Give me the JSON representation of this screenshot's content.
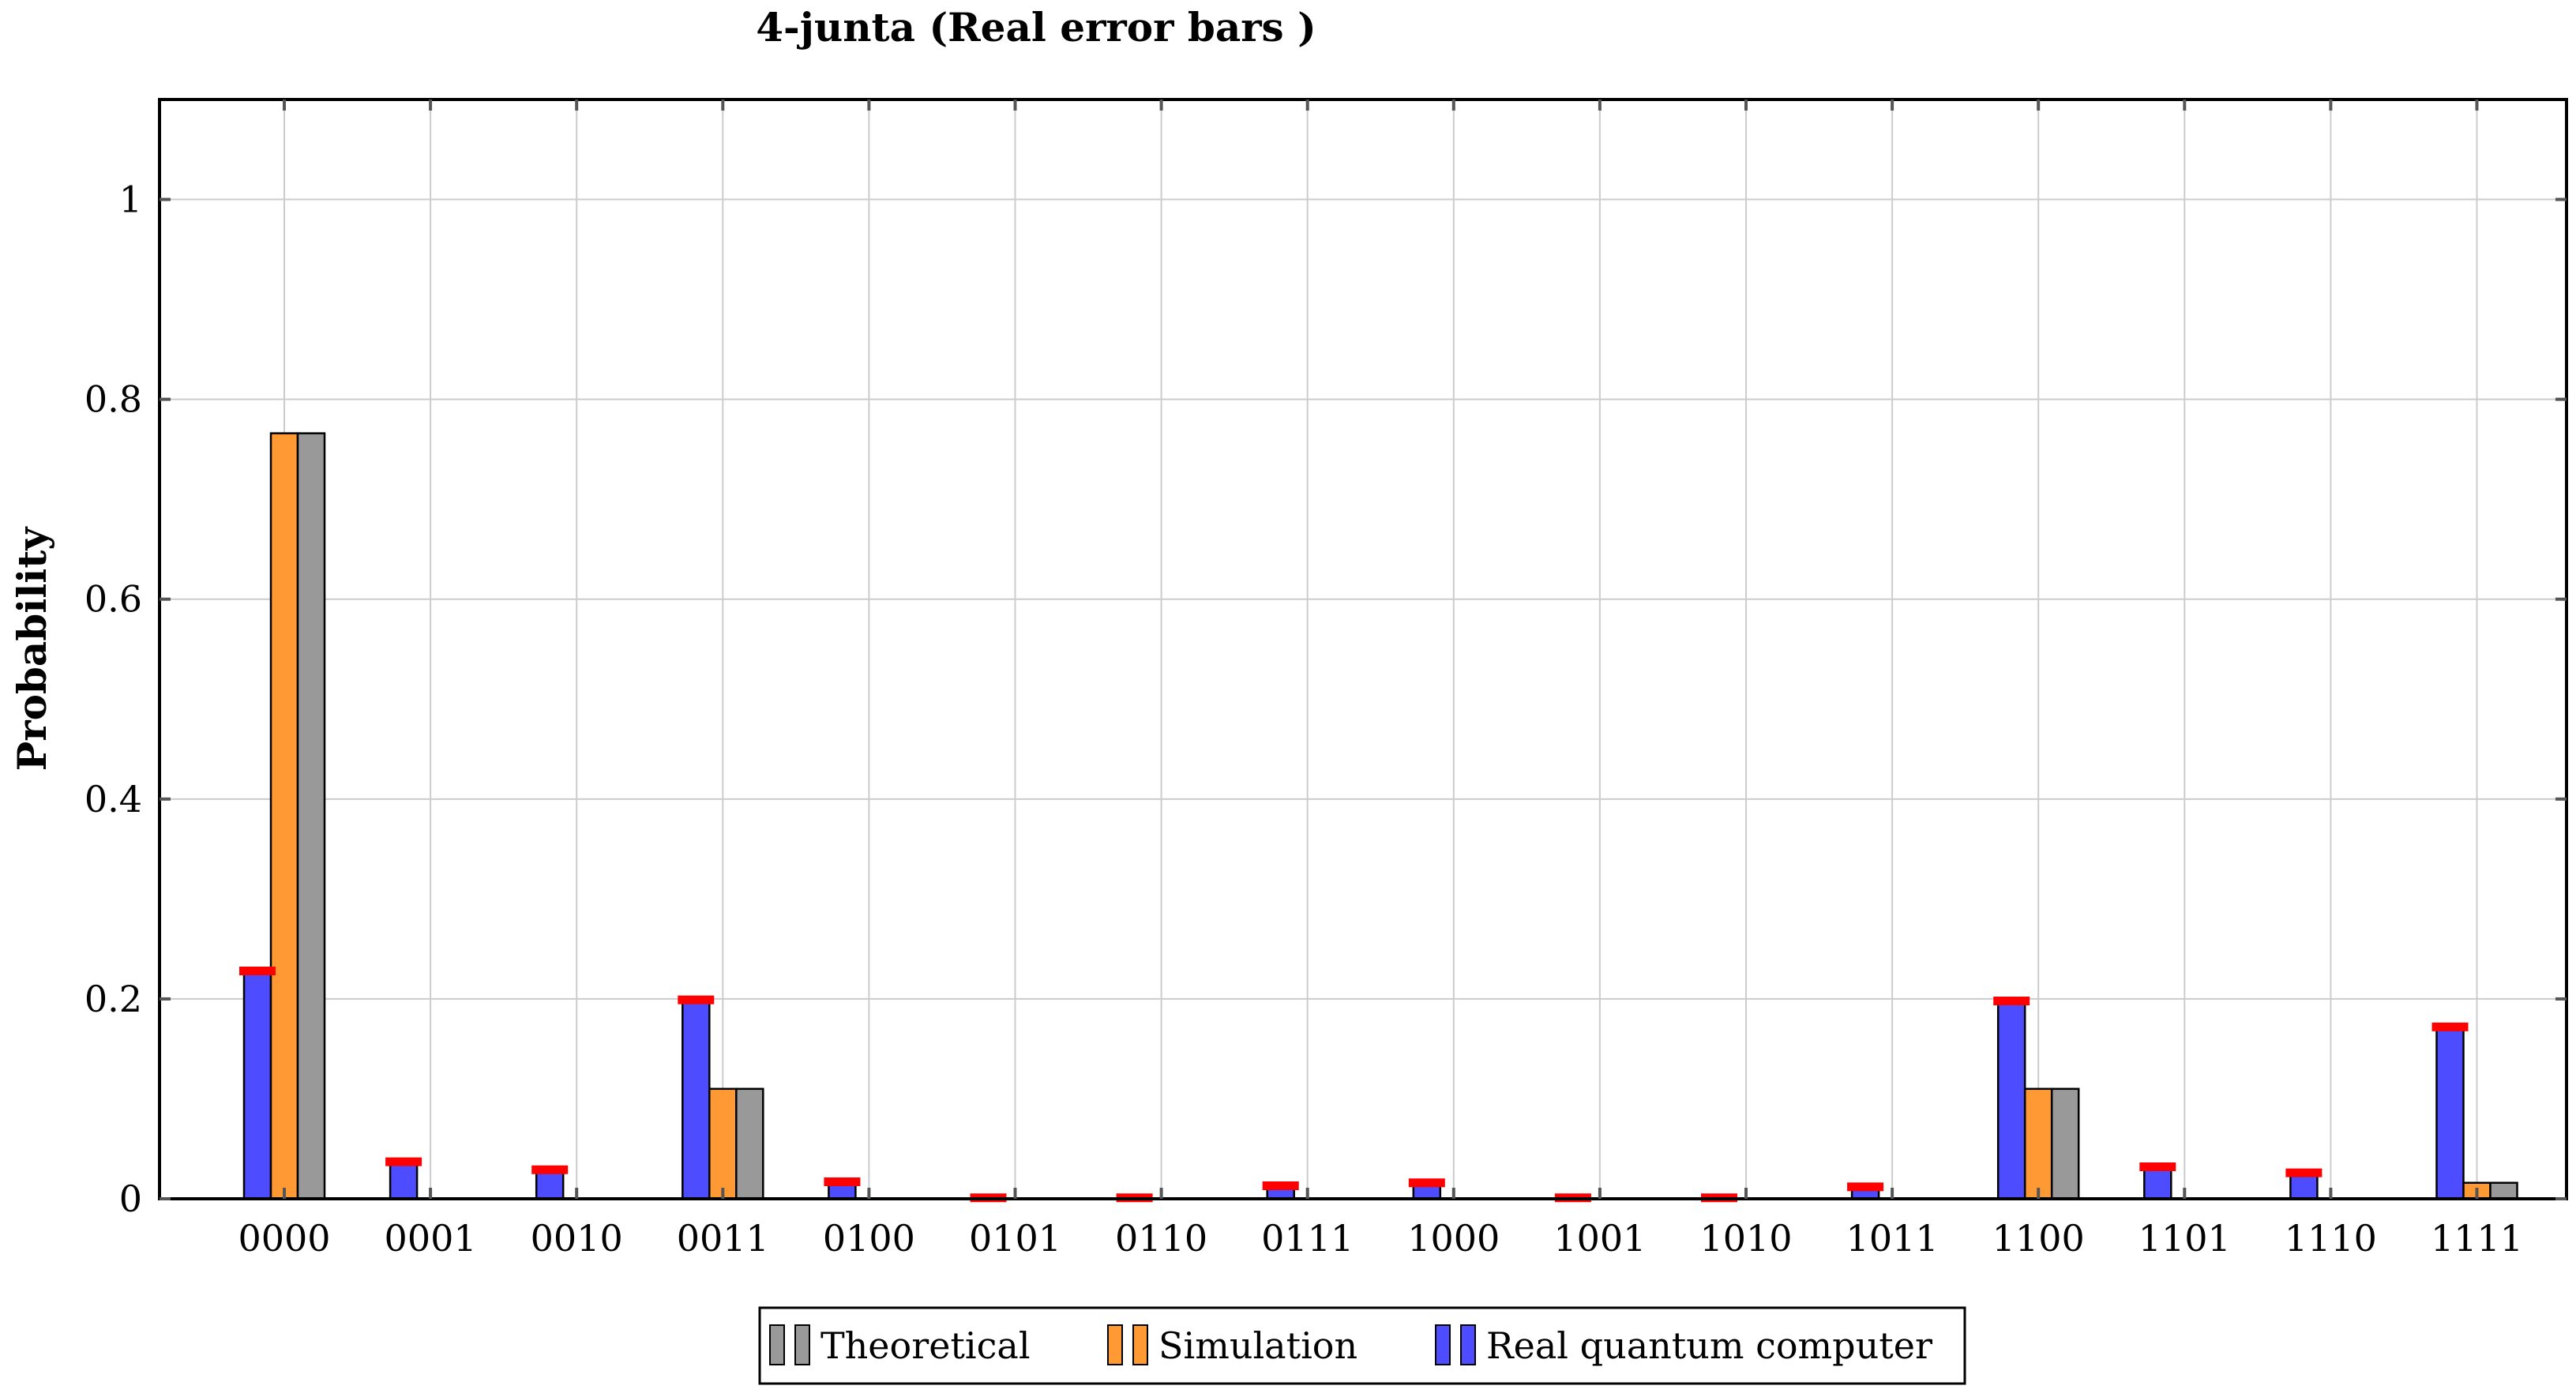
{
  "chart_data": {
    "type": "bar",
    "title": "4-junta (Real error bars )",
    "xlabel": "",
    "ylabel": "Probability",
    "ylim": [
      0,
      1.1
    ],
    "yticks": [
      0,
      0.2,
      0.4,
      0.6,
      0.8,
      1
    ],
    "ytick_labels": [
      "0",
      "0.2",
      "0.4",
      "0.6",
      "0.8",
      "1"
    ],
    "grid": true,
    "legend_position": "bottom-center",
    "categories": [
      "0000",
      "0001",
      "0010",
      "0011",
      "0100",
      "0101",
      "0110",
      "0111",
      "1000",
      "1001",
      "1010",
      "1011",
      "1100",
      "1101",
      "1110",
      "1111"
    ],
    "series": [
      {
        "name": "Real quantum computer",
        "color": "#4d4dff",
        "values": [
          0.228,
          0.037,
          0.029,
          0.199,
          0.017,
          0.001,
          0.001,
          0.013,
          0.016,
          0.001,
          0.001,
          0.012,
          0.198,
          0.032,
          0.026,
          0.172
        ],
        "error_color": "#ff0000"
      },
      {
        "name": "Simulation",
        "color": "#ff9933",
        "values": [
          0.766,
          0,
          0,
          0.11,
          0,
          0,
          0,
          0,
          0,
          0,
          0,
          0,
          0.11,
          0,
          0,
          0.016
        ]
      },
      {
        "name": "Theoretical",
        "color": "#999999",
        "values": [
          0.766,
          0,
          0,
          0.11,
          0,
          0,
          0,
          0,
          0,
          0,
          0,
          0,
          0.11,
          0,
          0,
          0.016
        ]
      }
    ],
    "legend_order": [
      "Theoretical",
      "Simulation",
      "Real quantum computer"
    ]
  }
}
